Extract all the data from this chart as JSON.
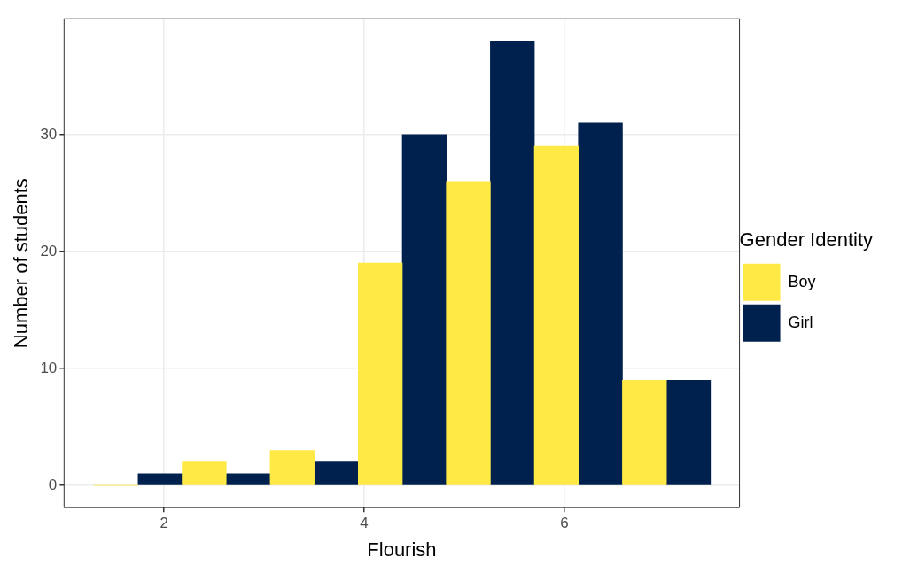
{
  "chart_data": {
    "type": "histogram",
    "xlabel": "Flourish",
    "ylabel": "Number of students",
    "legend_title": "Gender Identity",
    "bins": [
      1.3,
      2.18,
      3.06,
      3.94,
      4.82,
      5.7,
      6.58,
      7.46
    ],
    "series": [
      {
        "name": "Boy",
        "color": "#ffe945",
        "values": [
          0,
          2,
          3,
          19,
          26,
          29,
          9
        ]
      },
      {
        "name": "Girl",
        "color": "#00204d",
        "values": [
          1,
          1,
          2,
          30,
          38,
          31,
          9
        ]
      }
    ],
    "xlim": [
      1.0,
      7.75
    ],
    "xticks": [
      2,
      4,
      6
    ],
    "ylim": [
      -1.9,
      39.9
    ],
    "yticks": [
      0,
      10,
      20,
      30
    ],
    "grid": true,
    "legend": "right"
  }
}
